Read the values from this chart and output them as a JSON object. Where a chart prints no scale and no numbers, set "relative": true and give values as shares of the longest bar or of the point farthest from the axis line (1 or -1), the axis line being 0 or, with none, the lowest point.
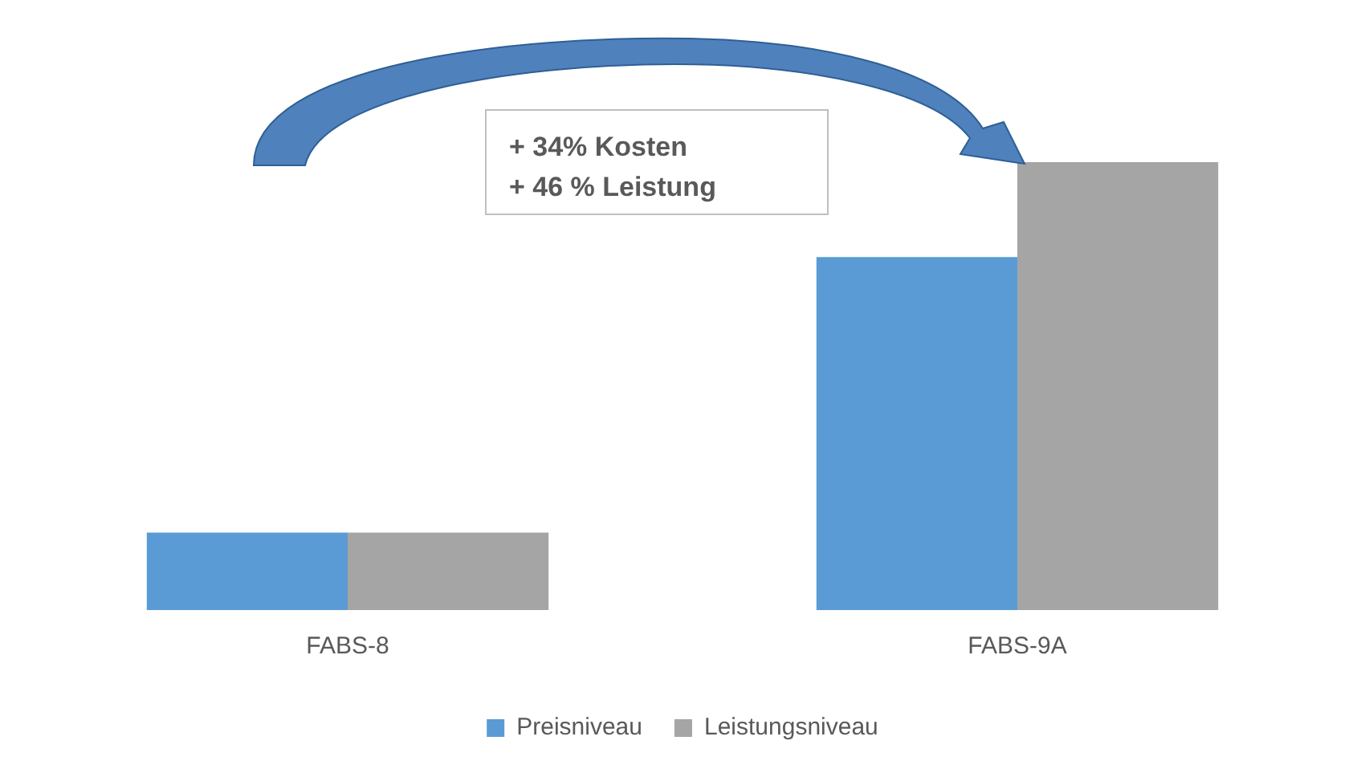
{
  "chart_data": {
    "type": "bar",
    "relative": true,
    "categories": [
      "FABS-8",
      "FABS-9A"
    ],
    "series": [
      {
        "name": "Preisniveau",
        "color": "#5b9bd5",
        "values": [
          0.173,
          0.788
        ]
      },
      {
        "name": "Leistungsniveau",
        "color": "#a5a5a5",
        "values": [
          0.173,
          1
        ]
      }
    ],
    "annotations": [
      "+ 34% Kosten",
      "+ 46 % Leistung"
    ],
    "legend": "bottom",
    "grid": false
  }
}
